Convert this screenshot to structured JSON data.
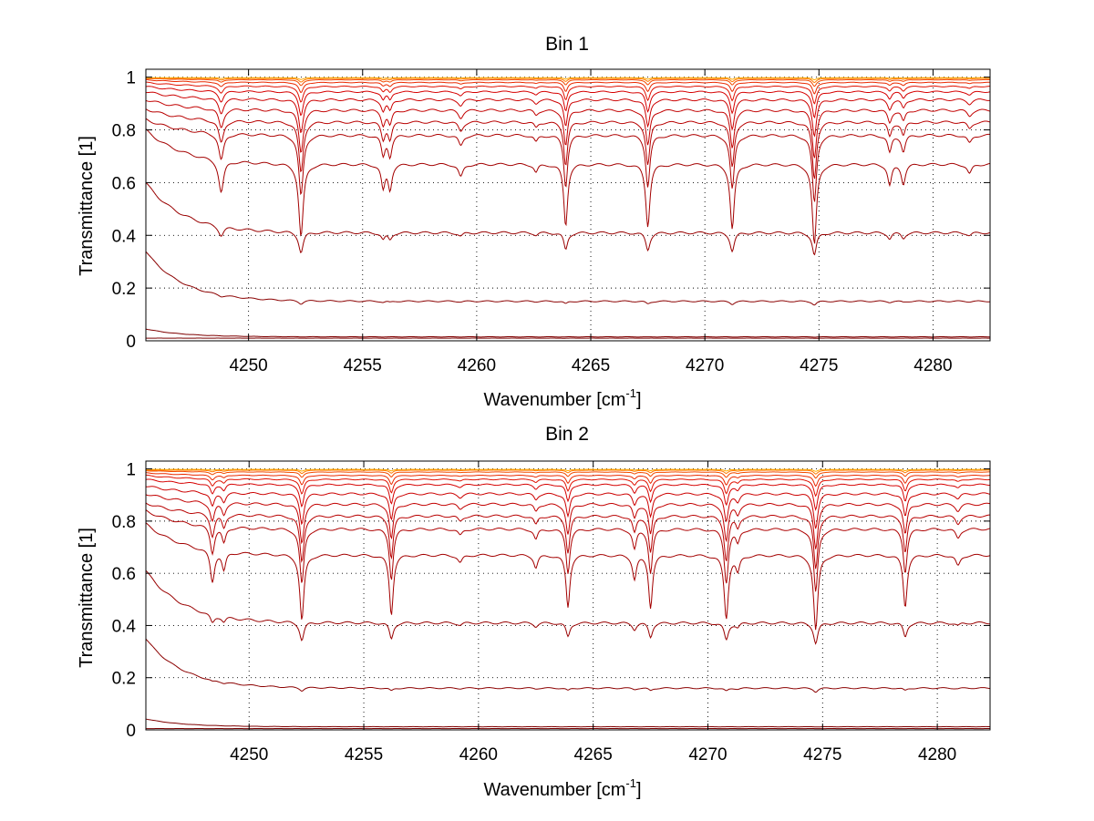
{
  "chart_data": [
    {
      "type": "line",
      "title": "Bin 1",
      "xlabel": "Wavenumber [cm",
      "xlabel_sup": "-1",
      "xlabel_end": "]",
      "ylabel": "Transmittance [1]",
      "xlim": [
        4245.5,
        4282.5
      ],
      "ylim": [
        0,
        1.03
      ],
      "xticks": [
        4250,
        4255,
        4260,
        4265,
        4270,
        4275,
        4280
      ],
      "xtick_labels": [
        "4250",
        "4255",
        "4260",
        "4265",
        "4270",
        "4275",
        "4280"
      ],
      "yticks": [
        0,
        0.2,
        0.4,
        0.6,
        0.8,
        1
      ],
      "ytick_labels": [
        "0",
        "0.2",
        "0.4",
        "0.6",
        "0.8",
        "1"
      ],
      "grid": true,
      "absorption_lines": [
        {
          "x": 4248.8,
          "depth": 0.2,
          "width": 0.13
        },
        {
          "x": 4252.3,
          "depth": 0.45,
          "width": 0.12
        },
        {
          "x": 4255.9,
          "depth": 0.15,
          "width": 0.1
        },
        {
          "x": 4256.2,
          "depth": 0.15,
          "width": 0.1
        },
        {
          "x": 4259.3,
          "depth": 0.08,
          "width": 0.12
        },
        {
          "x": 4262.6,
          "depth": 0.05,
          "width": 0.1
        },
        {
          "x": 4263.9,
          "depth": 0.38,
          "width": 0.1
        },
        {
          "x": 4267.5,
          "depth": 0.38,
          "width": 0.11
        },
        {
          "x": 4271.2,
          "depth": 0.4,
          "width": 0.11
        },
        {
          "x": 4274.8,
          "depth": 0.5,
          "width": 0.11
        },
        {
          "x": 4278.1,
          "depth": 0.13,
          "width": 0.1
        },
        {
          "x": 4278.7,
          "depth": 0.12,
          "width": 0.1
        },
        {
          "x": 4281.6,
          "depth": 0.06,
          "width": 0.12
        }
      ],
      "series": [
        {
          "color": "#7a0000",
          "baseline": 0.01,
          "edge_rise": 0.0,
          "line_scale": 0.02
        },
        {
          "color": "#7f0000",
          "baseline": 0.015,
          "edge_rise": 0.03,
          "line_scale": 0.05
        },
        {
          "color": "#8b0000",
          "baseline": 0.15,
          "edge_rise": 0.19,
          "line_scale": 0.18
        },
        {
          "color": "#990000",
          "baseline": 0.41,
          "edge_rise": 0.19,
          "line_scale": 0.42
        },
        {
          "color": "#a30000",
          "baseline": 0.67,
          "edge_rise": 0.13,
          "line_scale": 0.92
        },
        {
          "color": "#ad0000",
          "baseline": 0.78,
          "edge_rise": 0.06,
          "line_scale": 0.66
        },
        {
          "color": "#b80000",
          "baseline": 0.83,
          "edge_rise": 0.05,
          "line_scale": 0.52
        },
        {
          "color": "#c20000",
          "baseline": 0.875,
          "edge_rise": 0.04,
          "line_scale": 0.41
        },
        {
          "color": "#cc0000",
          "baseline": 0.915,
          "edge_rise": 0.03,
          "line_scale": 0.3
        },
        {
          "color": "#d60000",
          "baseline": 0.945,
          "edge_rise": 0.02,
          "line_scale": 0.21
        },
        {
          "color": "#e01000",
          "baseline": 0.965,
          "edge_rise": 0.015,
          "line_scale": 0.14
        },
        {
          "color": "#ea2a00",
          "baseline": 0.98,
          "edge_rise": 0.01,
          "line_scale": 0.09
        },
        {
          "color": "#f24a00",
          "baseline": 0.99,
          "edge_rise": 0.005,
          "line_scale": 0.05
        },
        {
          "color": "#ff7a00",
          "baseline": 0.995,
          "edge_rise": 0.0,
          "line_scale": 0.03
        },
        {
          "color": "#ffaa00",
          "baseline": 0.998,
          "edge_rise": 0.0,
          "line_scale": 0.015
        }
      ]
    },
    {
      "type": "line",
      "title": "Bin 2",
      "xlabel": "Wavenumber [cm",
      "xlabel_sup": "-1",
      "xlabel_end": "]",
      "ylabel": "Transmittance [1]",
      "xlim": [
        4245.5,
        4282.3
      ],
      "ylim": [
        0,
        1.03
      ],
      "xticks": [
        4250,
        4255,
        4260,
        4265,
        4270,
        4275,
        4280
      ],
      "xtick_labels": [
        "4250",
        "4255",
        "4260",
        "4265",
        "4270",
        "4275",
        "4280"
      ],
      "yticks": [
        0,
        0.2,
        0.4,
        0.6,
        0.8,
        1
      ],
      "ytick_labels": [
        "0",
        "0.2",
        "0.4",
        "0.6",
        "0.8",
        "1"
      ],
      "grid": true,
      "absorption_lines": [
        {
          "x": 4248.4,
          "depth": 0.2,
          "width": 0.11
        },
        {
          "x": 4248.9,
          "depth": 0.12,
          "width": 0.1
        },
        {
          "x": 4252.3,
          "depth": 0.42,
          "width": 0.11
        },
        {
          "x": 4256.2,
          "depth": 0.38,
          "width": 0.1
        },
        {
          "x": 4259.2,
          "depth": 0.05,
          "width": 0.12
        },
        {
          "x": 4262.5,
          "depth": 0.08,
          "width": 0.1
        },
        {
          "x": 4263.9,
          "depth": 0.33,
          "width": 0.1
        },
        {
          "x": 4266.8,
          "depth": 0.15,
          "width": 0.1
        },
        {
          "x": 4267.5,
          "depth": 0.33,
          "width": 0.1
        },
        {
          "x": 4270.8,
          "depth": 0.4,
          "width": 0.11
        },
        {
          "x": 4271.3,
          "depth": 0.1,
          "width": 0.1
        },
        {
          "x": 4274.7,
          "depth": 0.48,
          "width": 0.11
        },
        {
          "x": 4278.6,
          "depth": 0.33,
          "width": 0.1
        },
        {
          "x": 4280.9,
          "depth": 0.07,
          "width": 0.12
        }
      ],
      "series": [
        {
          "color": "#7a0000",
          "baseline": 0.005,
          "edge_rise": 0.0,
          "line_scale": 0.01
        },
        {
          "color": "#7f0000",
          "baseline": 0.012,
          "edge_rise": 0.03,
          "line_scale": 0.04
        },
        {
          "color": "#8b0000",
          "baseline": 0.16,
          "edge_rise": 0.19,
          "line_scale": 0.18
        },
        {
          "color": "#990000",
          "baseline": 0.41,
          "edge_rise": 0.2,
          "line_scale": 0.4
        },
        {
          "color": "#a30000",
          "baseline": 0.67,
          "edge_rise": 0.12,
          "line_scale": 0.9
        },
        {
          "color": "#ad0000",
          "baseline": 0.77,
          "edge_rise": 0.07,
          "line_scale": 0.66
        },
        {
          "color": "#b80000",
          "baseline": 0.82,
          "edge_rise": 0.05,
          "line_scale": 0.52
        },
        {
          "color": "#c20000",
          "baseline": 0.865,
          "edge_rise": 0.04,
          "line_scale": 0.41
        },
        {
          "color": "#cc0000",
          "baseline": 0.905,
          "edge_rise": 0.03,
          "line_scale": 0.3
        },
        {
          "color": "#d60000",
          "baseline": 0.94,
          "edge_rise": 0.02,
          "line_scale": 0.21
        },
        {
          "color": "#e01000",
          "baseline": 0.96,
          "edge_rise": 0.015,
          "line_scale": 0.14
        },
        {
          "color": "#ea2a00",
          "baseline": 0.975,
          "edge_rise": 0.01,
          "line_scale": 0.09
        },
        {
          "color": "#f24a00",
          "baseline": 0.988,
          "edge_rise": 0.005,
          "line_scale": 0.05
        },
        {
          "color": "#ff7a00",
          "baseline": 0.995,
          "edge_rise": 0.0,
          "line_scale": 0.03
        },
        {
          "color": "#ffaa00",
          "baseline": 0.998,
          "edge_rise": 0.0,
          "line_scale": 0.015
        }
      ]
    }
  ]
}
